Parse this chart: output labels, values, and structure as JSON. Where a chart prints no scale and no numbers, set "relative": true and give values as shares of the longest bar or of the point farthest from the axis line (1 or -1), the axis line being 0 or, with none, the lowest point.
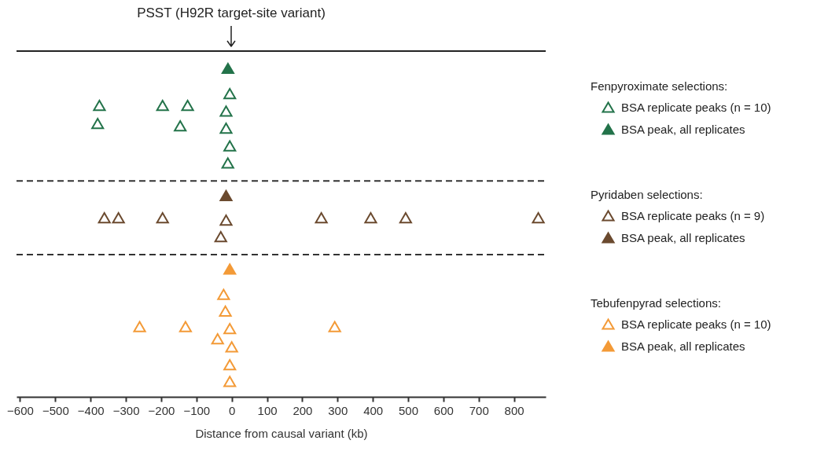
{
  "chart_data": {
    "type": "scatter",
    "relative": true,
    "legend": "right",
    "marker": "triangle",
    "xlim": [
      -610,
      890
    ],
    "xticks": [
      -600,
      -500,
      -400,
      -300,
      -200,
      -100,
      0,
      100,
      200,
      300,
      400,
      500,
      600,
      700,
      800
    ],
    "xlabel": "Distance from causal variant (kb)",
    "annotations": [
      "PSST (H92R target-site variant)",
      "Fenpyroximate selections:",
      "Pyridaben selections:",
      "Tebufenpyrad selections:"
    ],
    "ref_lines": [
      {
        "axis": "y",
        "value": 0.657,
        "line_style": "dashed",
        "color": "#333333"
      },
      {
        "axis": "y",
        "value": 0.433,
        "line_style": "dashed",
        "color": "#333333"
      }
    ],
    "series": [
      {
        "name": "BSA replicate peaks (n = 10)",
        "color": "#23734a",
        "x": [
          -5.5,
          -375,
          -196,
          -125,
          -16,
          -380,
          -146,
          -16,
          -5.5,
          -11
        ],
        "values": [
          0.923,
          0.887,
          0.887,
          0.887,
          0.87,
          0.832,
          0.825,
          0.818,
          0.764,
          0.712
        ]
      },
      {
        "name": "BSA peak, all replicates",
        "color": "#23734a",
        "x": [
          -10.7
        ],
        "values": [
          1
        ]
      },
      {
        "name": "BSA replicate peaks (n = 9)",
        "color": "#6b4a2f",
        "x": [
          -361,
          -321,
          -196,
          -16,
          254,
          394,
          493,
          869,
          -31
        ],
        "values": [
          0.545,
          0.545,
          0.545,
          0.538,
          0.545,
          0.545,
          0.545,
          0.545,
          0.488
        ]
      },
      {
        "name": "BSA peak, all replicates",
        "color": "#6b4a2f",
        "x": [
          -16
        ],
        "values": [
          0.613
        ]
      },
      {
        "name": "BSA replicate peaks (n = 10)",
        "color": "#f39a37",
        "x": [
          -23,
          -18,
          -261,
          -131,
          -5.5,
          292,
          -40,
          0,
          -5.5,
          -5.5
        ],
        "values": [
          0.312,
          0.261,
          0.214,
          0.214,
          0.208,
          0.214,
          0.177,
          0.152,
          0.098,
          0.047
        ]
      },
      {
        "name": "BSA peak, all replicates",
        "color": "#f39a37",
        "x": [
          -5.5
        ],
        "values": [
          0.389
        ]
      }
    ]
  }
}
